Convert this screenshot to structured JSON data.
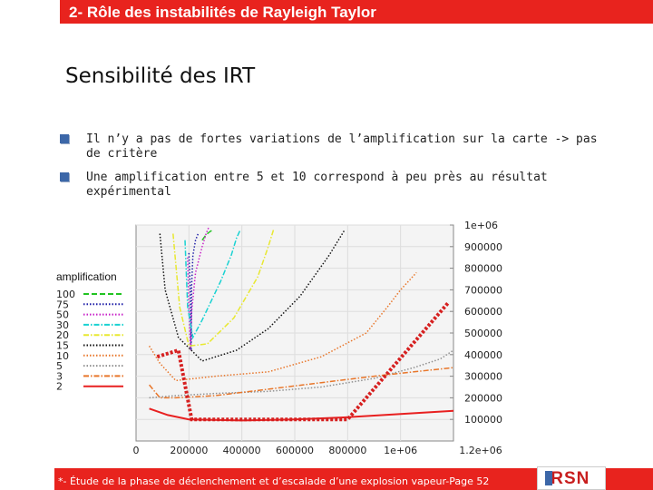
{
  "header": {
    "title": "2- Rôle des instabilités de Rayleigh Taylor"
  },
  "subtitle": "Sensibilité des IRT",
  "bullets": [
    "Il n’y a pas de fortes variations de l’amplification sur la carte -> pas de critère",
    "Une amplification entre 5 et 10 correspond à peu près au résultat expérimental"
  ],
  "footer": {
    "text": "*- Étude de la phase de déclenchement et d’escalade d’une explosion vapeur-Page 52",
    "logo": "IRSN"
  },
  "chart_data": {
    "type": "line",
    "title": "",
    "xlabel": "",
    "ylabel": "",
    "xlim": [
      0,
      1200000
    ],
    "ylim": [
      0,
      1000000
    ],
    "x_ticks": [
      "0",
      "200000",
      "400000",
      "600000",
      "800000",
      "1e+06",
      "1.2e+06"
    ],
    "y_ticks": [
      "100000",
      "200000",
      "300000",
      "400000",
      "500000",
      "600000",
      "700000",
      "800000",
      "900000",
      "1e+06"
    ],
    "grid": true,
    "legend_title": "amplification",
    "legend_position": "left",
    "series": [
      {
        "name": "100",
        "color": "#22c322",
        "dash": "dash",
        "points": [
          [
            250000,
            930000
          ],
          [
            265000,
            955000
          ],
          [
            280000,
            970000
          ],
          [
            295000,
            980000
          ]
        ]
      },
      {
        "name": "75",
        "color": "#1f1fa8",
        "dash": "dot",
        "points": [
          [
            200000,
            870000
          ],
          [
            205000,
            700000
          ],
          [
            208000,
            420000
          ],
          [
            210000,
            720000
          ],
          [
            215000,
            860000
          ],
          [
            225000,
            930000
          ],
          [
            235000,
            960000
          ]
        ]
      },
      {
        "name": "50",
        "color": "#c820c8",
        "dash": "dot",
        "points": [
          [
            195000,
            850000
          ],
          [
            200000,
            620000
          ],
          [
            206000,
            420000
          ],
          [
            210000,
            600000
          ],
          [
            225000,
            780000
          ],
          [
            250000,
            900000
          ],
          [
            265000,
            960000
          ],
          [
            275000,
            990000
          ]
        ]
      },
      {
        "name": "30",
        "color": "#18d2d2",
        "dash": "dashdot",
        "points": [
          [
            185000,
            930000
          ],
          [
            195000,
            620000
          ],
          [
            215000,
            480000
          ],
          [
            250000,
            560000
          ],
          [
            320000,
            740000
          ],
          [
            360000,
            860000
          ],
          [
            380000,
            940000
          ],
          [
            395000,
            980000
          ]
        ]
      },
      {
        "name": "20",
        "color": "#e8e830",
        "dash": "dashdot",
        "points": [
          [
            140000,
            960000
          ],
          [
            165000,
            620000
          ],
          [
            200000,
            440000
          ],
          [
            270000,
            450000
          ],
          [
            370000,
            570000
          ],
          [
            460000,
            760000
          ],
          [
            500000,
            900000
          ],
          [
            520000,
            980000
          ]
        ]
      },
      {
        "name": "15",
        "color": "#111111",
        "dash": "dot",
        "points": [
          [
            90000,
            960000
          ],
          [
            110000,
            700000
          ],
          [
            160000,
            480000
          ],
          [
            250000,
            370000
          ],
          [
            380000,
            420000
          ],
          [
            500000,
            520000
          ],
          [
            620000,
            670000
          ],
          [
            730000,
            860000
          ],
          [
            790000,
            980000
          ]
        ]
      },
      {
        "name": "10",
        "color": "#e8762a",
        "dash": "dot",
        "points": [
          [
            50000,
            440000
          ],
          [
            90000,
            360000
          ],
          [
            150000,
            280000
          ],
          [
            300000,
            300000
          ],
          [
            500000,
            320000
          ],
          [
            700000,
            390000
          ],
          [
            870000,
            500000
          ],
          [
            950000,
            620000
          ],
          [
            1000000,
            700000
          ],
          [
            1060000,
            780000
          ]
        ]
      },
      {
        "name": "5",
        "color": "#909090",
        "dash": "dot",
        "points": [
          [
            50000,
            200000
          ],
          [
            150000,
            210000
          ],
          [
            300000,
            220000
          ],
          [
            500000,
            230000
          ],
          [
            700000,
            250000
          ],
          [
            900000,
            290000
          ],
          [
            1050000,
            340000
          ],
          [
            1150000,
            380000
          ],
          [
            1200000,
            420000
          ]
        ]
      },
      {
        "name": "3",
        "color": "#e8762a",
        "dash": "dashdot",
        "points": [
          [
            50000,
            260000
          ],
          [
            90000,
            200000
          ],
          [
            150000,
            200000
          ],
          [
            300000,
            210000
          ],
          [
            500000,
            240000
          ],
          [
            700000,
            270000
          ],
          [
            900000,
            300000
          ],
          [
            1050000,
            320000
          ],
          [
            1200000,
            340000
          ]
        ]
      },
      {
        "name": "2",
        "color": "#e82020",
        "dash": "solid",
        "points": [
          [
            50000,
            150000
          ],
          [
            120000,
            120000
          ],
          [
            200000,
            100000
          ],
          [
            400000,
            95000
          ],
          [
            600000,
            100000
          ],
          [
            800000,
            110000
          ],
          [
            1000000,
            125000
          ],
          [
            1200000,
            140000
          ]
        ]
      }
    ],
    "annotation": {
      "color": "#d62020",
      "dash": "bold-dot",
      "points": [
        [
          80000,
          390000
        ],
        [
          160000,
          420000
        ],
        [
          210000,
          100000
        ],
        [
          660000,
          100000
        ],
        [
          800000,
          100000
        ],
        [
          1180000,
          640000
        ]
      ]
    }
  }
}
